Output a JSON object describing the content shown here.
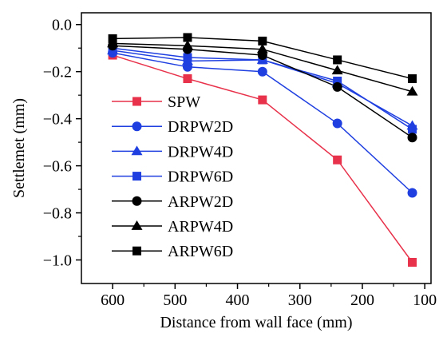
{
  "chart_data": {
    "type": "line",
    "title": "",
    "xlabel": "Distance from wall face (mm)",
    "ylabel": "Settlemet (mm)",
    "xlim": [
      650,
      90
    ],
    "ylim": [
      -1.1,
      0.05
    ],
    "x_reversed": true,
    "x": [
      600,
      480,
      360,
      240,
      120
    ],
    "x_ticks": [
      600,
      500,
      400,
      300,
      200,
      100
    ],
    "x_tick_labels": [
      "600",
      "500",
      "400",
      "300",
      "200",
      "100"
    ],
    "y_ticks": [
      0.0,
      -0.2,
      -0.4,
      -0.6,
      -0.8,
      -1.0
    ],
    "y_tick_labels": [
      "0.0",
      "−0.2",
      "−0.4",
      "−0.6",
      "−0.8",
      "−1.0"
    ],
    "grid": false,
    "legend_position": "lower-left",
    "series": [
      {
        "name": "SPW",
        "marker": "square",
        "color": "#e8314a",
        "values": [
          -0.13,
          -0.23,
          -0.32,
          -0.575,
          -1.01
        ]
      },
      {
        "name": "DRPW2D",
        "marker": "circle",
        "color": "#1f3fe0",
        "values": [
          -0.12,
          -0.18,
          -0.2,
          -0.42,
          -0.715
        ]
      },
      {
        "name": "DRPW4D",
        "marker": "triangle",
        "color": "#1f3fe0",
        "values": [
          -0.11,
          -0.155,
          -0.15,
          -0.25,
          -0.43
        ]
      },
      {
        "name": "DRPW6D",
        "marker": "square",
        "color": "#1f3fe0",
        "values": [
          -0.1,
          -0.14,
          -0.15,
          -0.24,
          -0.445
        ]
      },
      {
        "name": "ARPW2D",
        "marker": "circle",
        "color": "#000000",
        "values": [
          -0.09,
          -0.105,
          -0.13,
          -0.265,
          -0.48
        ]
      },
      {
        "name": "ARPW4D",
        "marker": "triangle",
        "color": "#000000",
        "values": [
          -0.08,
          -0.09,
          -0.105,
          -0.195,
          -0.285
        ]
      },
      {
        "name": "ARPW6D",
        "marker": "square",
        "color": "#000000",
        "values": [
          -0.06,
          -0.055,
          -0.07,
          -0.15,
          -0.23
        ]
      }
    ]
  }
}
